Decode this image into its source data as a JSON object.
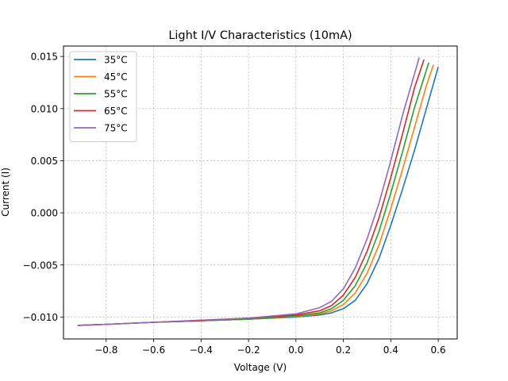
{
  "chart_data": {
    "type": "line",
    "title": "Light I/V Characteristics (10mA)",
    "xlabel": "Voltage (V)",
    "ylabel": "Current (I)",
    "xlim": [
      -0.98,
      0.68
    ],
    "ylim": [
      -0.0121,
      0.016
    ],
    "xticks": [
      -0.8,
      -0.6,
      -0.4,
      -0.2,
      0.0,
      0.2,
      0.4,
      0.6
    ],
    "xtick_labels": [
      "−0.8",
      "−0.6",
      "−0.4",
      "−0.2",
      "0.0",
      "0.2",
      "0.4",
      "0.6"
    ],
    "yticks": [
      -0.01,
      -0.005,
      0.0,
      0.005,
      0.01,
      0.015
    ],
    "ytick_labels": [
      "−0.010",
      "−0.005",
      "0.000",
      "0.005",
      "0.010",
      "0.015"
    ],
    "grid": true,
    "legend_position": "top-left",
    "series": [
      {
        "name": "35°C",
        "color": "#1f77b4",
        "x": [
          -0.92,
          -0.8,
          -0.6,
          -0.4,
          -0.2,
          0.0,
          0.1,
          0.15,
          0.2,
          0.25,
          0.3,
          0.35,
          0.4,
          0.45,
          0.5,
          0.55,
          0.6
        ],
        "y": [
          -0.0108,
          -0.0107,
          -0.0105,
          -0.01035,
          -0.0102,
          -0.01,
          -0.0098,
          -0.0096,
          -0.0092,
          -0.0084,
          -0.0068,
          -0.0044,
          -0.0012,
          0.0023,
          0.006,
          0.01,
          0.014
        ]
      },
      {
        "name": "45°C",
        "color": "#ff7f0e",
        "x": [
          -0.92,
          -0.8,
          -0.6,
          -0.4,
          -0.2,
          0.0,
          0.1,
          0.15,
          0.2,
          0.25,
          0.3,
          0.35,
          0.4,
          0.45,
          0.5,
          0.55,
          0.58
        ],
        "y": [
          -0.0108,
          -0.0107,
          -0.0105,
          -0.01035,
          -0.0102,
          -0.00995,
          -0.0097,
          -0.0094,
          -0.0088,
          -0.0077,
          -0.0058,
          -0.0031,
          0.0004,
          0.0042,
          0.0082,
          0.0122,
          0.0142
        ]
      },
      {
        "name": "55°C",
        "color": "#2ca02c",
        "x": [
          -0.92,
          -0.8,
          -0.6,
          -0.4,
          -0.2,
          0.0,
          0.1,
          0.15,
          0.2,
          0.25,
          0.3,
          0.35,
          0.4,
          0.45,
          0.5,
          0.56
        ],
        "y": [
          -0.0108,
          -0.0107,
          -0.0105,
          -0.01035,
          -0.0102,
          -0.0099,
          -0.0096,
          -0.0092,
          -0.0084,
          -0.007,
          -0.0048,
          -0.0018,
          0.0019,
          0.0059,
          0.0101,
          0.0144
        ]
      },
      {
        "name": "65°C",
        "color": "#d62728",
        "x": [
          -0.92,
          -0.8,
          -0.6,
          -0.4,
          -0.2,
          0.0,
          0.1,
          0.15,
          0.2,
          0.25,
          0.3,
          0.35,
          0.4,
          0.45,
          0.5,
          0.54
        ],
        "y": [
          -0.0108,
          -0.0107,
          -0.0105,
          -0.01035,
          -0.0101,
          -0.0098,
          -0.0094,
          -0.0089,
          -0.0079,
          -0.0062,
          -0.0037,
          -0.0005,
          0.0034,
          0.0076,
          0.012,
          0.0147
        ]
      },
      {
        "name": "75°C",
        "color": "#9467bd",
        "x": [
          -0.92,
          -0.8,
          -0.6,
          -0.4,
          -0.2,
          0.0,
          0.1,
          0.15,
          0.2,
          0.25,
          0.3,
          0.35,
          0.4,
          0.45,
          0.52
        ],
        "y": [
          -0.0108,
          -0.0107,
          -0.0105,
          -0.0103,
          -0.0101,
          -0.0097,
          -0.0091,
          -0.0085,
          -0.0073,
          -0.0053,
          -0.0025,
          0.0009,
          0.005,
          0.0094,
          0.0149
        ]
      }
    ]
  }
}
